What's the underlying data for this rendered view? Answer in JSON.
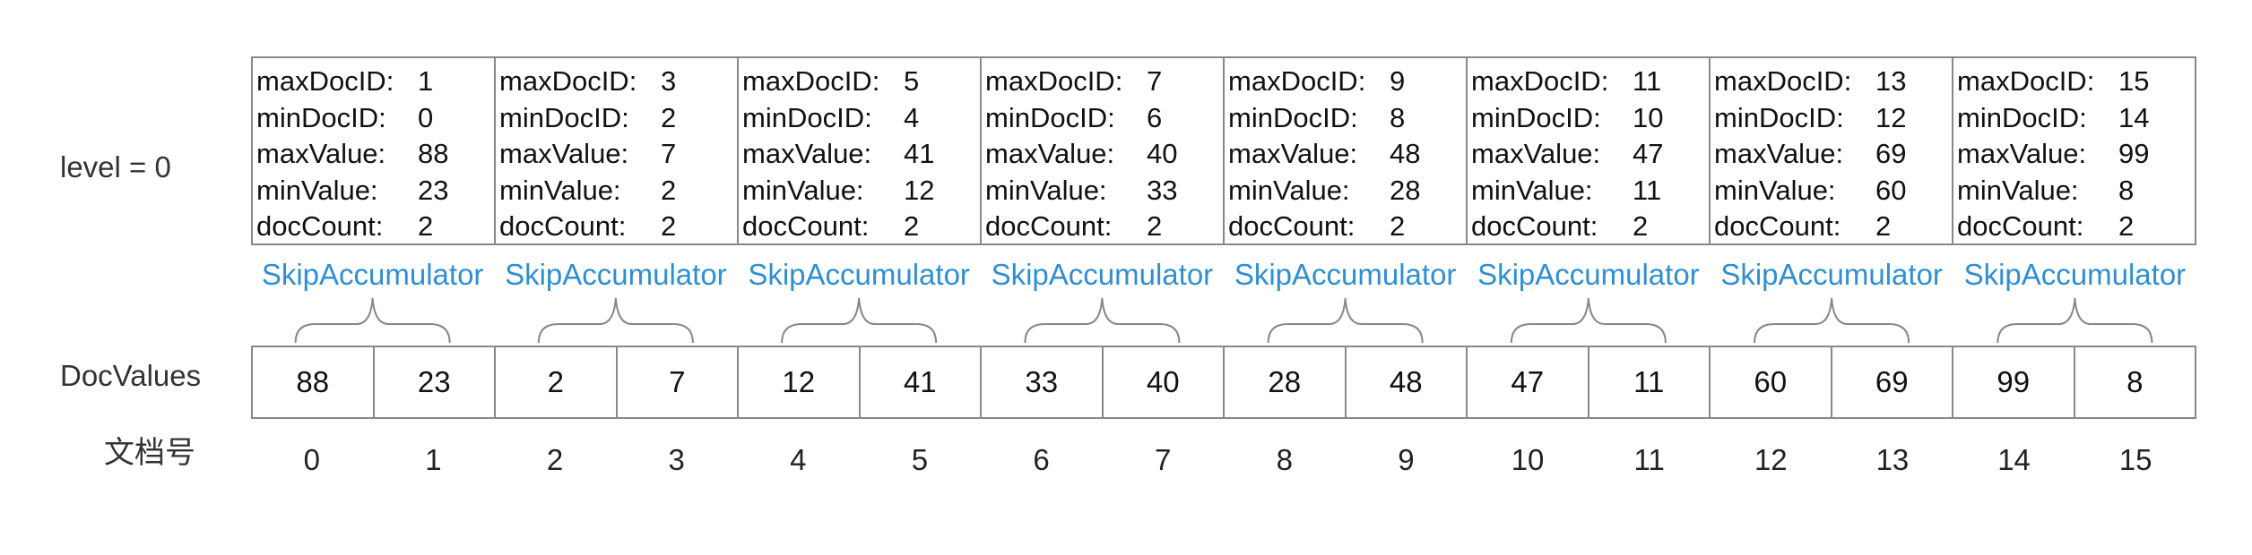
{
  "labels": {
    "level": "level = 0",
    "docvalues": "DocValues",
    "doc_numbers": "文档号"
  },
  "field_names": {
    "max_doc_id": "maxDocID:",
    "min_doc_id": "minDocID:",
    "max_value": "maxValue:",
    "min_value": "minValue:",
    "doc_count": "docCount:"
  },
  "blocks": [
    {
      "maxDocID": "1",
      "minDocID": "0",
      "maxValue": "88",
      "minValue": "23",
      "docCount": "2"
    },
    {
      "maxDocID": "3",
      "minDocID": "2",
      "maxValue": "7",
      "minValue": "2",
      "docCount": "2"
    },
    {
      "maxDocID": "5",
      "minDocID": "4",
      "maxValue": "41",
      "minValue": "12",
      "docCount": "2"
    },
    {
      "maxDocID": "7",
      "minDocID": "6",
      "maxValue": "40",
      "minValue": "33",
      "docCount": "2"
    },
    {
      "maxDocID": "9",
      "minDocID": "8",
      "maxValue": "48",
      "minValue": "28",
      "docCount": "2"
    },
    {
      "maxDocID": "11",
      "minDocID": "10",
      "maxValue": "47",
      "minValue": "11",
      "docCount": "2"
    },
    {
      "maxDocID": "13",
      "minDocID": "12",
      "maxValue": "69",
      "minValue": "60",
      "docCount": "2"
    },
    {
      "maxDocID": "15",
      "minDocID": "14",
      "maxValue": "99",
      "minValue": "8",
      "docCount": "2"
    }
  ],
  "skip_accumulator_label": "SkipAccumulator",
  "doc_values": [
    "88",
    "23",
    "2",
    "7",
    "12",
    "41",
    "33",
    "40",
    "28",
    "48",
    "47",
    "11",
    "60",
    "69",
    "99",
    "8"
  ],
  "doc_numbers": [
    "0",
    "1",
    "2",
    "3",
    "4",
    "5",
    "6",
    "7",
    "8",
    "9",
    "10",
    "11",
    "12",
    "13",
    "14",
    "15"
  ],
  "colors": {
    "accent": "#2f8fd0",
    "border": "#888888",
    "text": "#111111"
  }
}
